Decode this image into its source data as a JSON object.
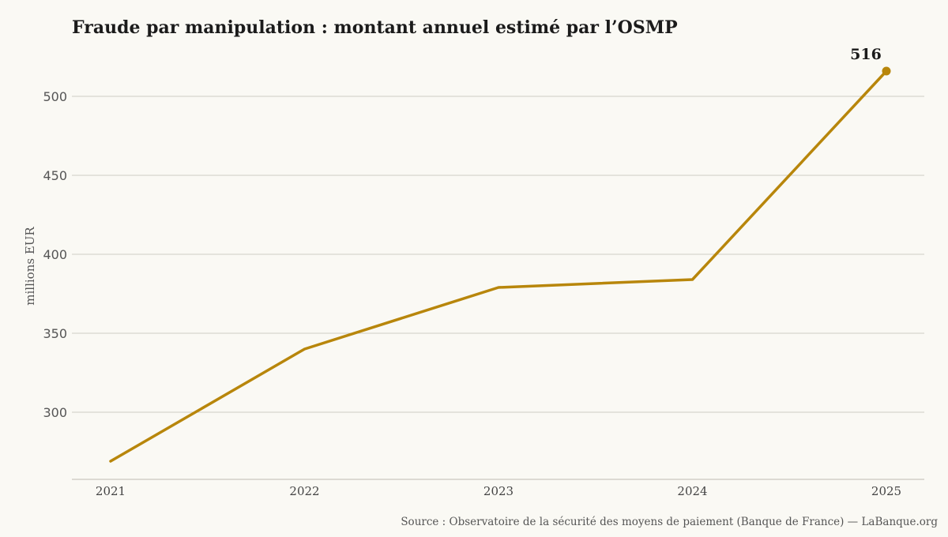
{
  "chart_data": {
    "type": "line",
    "title": "Fraude par manipulation : montant annuel estimé par l’OSMP",
    "xlabel": "",
    "ylabel": "millions EUR",
    "x": [
      "2021",
      "2022",
      "2023",
      "2024",
      "2025"
    ],
    "series": [
      {
        "values": [
          269,
          340,
          379,
          384,
          516
        ]
      }
    ],
    "ylim": [
      256,
      534
    ],
    "yticks": [
      300,
      350,
      400,
      450,
      500
    ],
    "grid": "horizontal",
    "annotations": [
      {
        "x": "2025",
        "value": 516,
        "label": "516"
      }
    ],
    "colors": {
      "line": "#b8860b",
      "grid": "#cfcdc4",
      "background": "#faf9f4"
    },
    "source": "Source : Observatoire de la sécurité des moyens de paiement (Banque de France) — LaBanque.org"
  }
}
